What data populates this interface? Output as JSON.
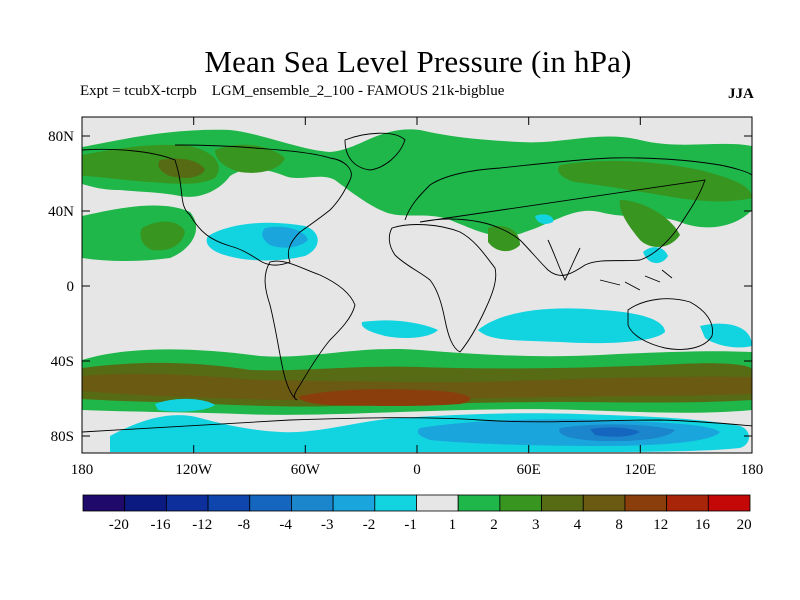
{
  "title": "Mean Sea Level Pressure (in hPa)",
  "subtitle": "Expt = tcubX-tcrpb    LGM_ensemble_2_100 - FAMOUS 21k-bigblue",
  "season": "JJA",
  "axes": {
    "lat_ticks": [
      "80N",
      "40N",
      "0",
      "40S",
      "80S"
    ],
    "lon_ticks": [
      "180",
      "120W",
      "60W",
      "0",
      "60E",
      "120E",
      "180"
    ]
  },
  "colorbar": {
    "labels": [
      "-20",
      "-16",
      "-12",
      "-8",
      "-4",
      "-3",
      "-2",
      "-1",
      "1",
      "2",
      "3",
      "4",
      "8",
      "12",
      "16",
      "20"
    ],
    "colors": [
      "#1f0a6b",
      "#0b1a80",
      "#0d2f9c",
      "#0f46ad",
      "#1466bf",
      "#1b86cc",
      "#1aa6dc",
      "#12d4e0",
      "#e6e6e6",
      "#1fb64a",
      "#38951f",
      "#566b14",
      "#6b5a12",
      "#8a3e0c",
      "#a8250a",
      "#c40808"
    ]
  },
  "palette": {
    "neutral": "#e6e6e6",
    "pos1": "#1fb64a",
    "pos2": "#38951f",
    "pos3": "#566b14",
    "pos4": "#6b5a12",
    "pos5": "#8a3e0c",
    "neg1": "#12d4e0",
    "neg2": "#1aa6dc",
    "neg3": "#1b86cc",
    "neg4": "#1466bf"
  }
}
